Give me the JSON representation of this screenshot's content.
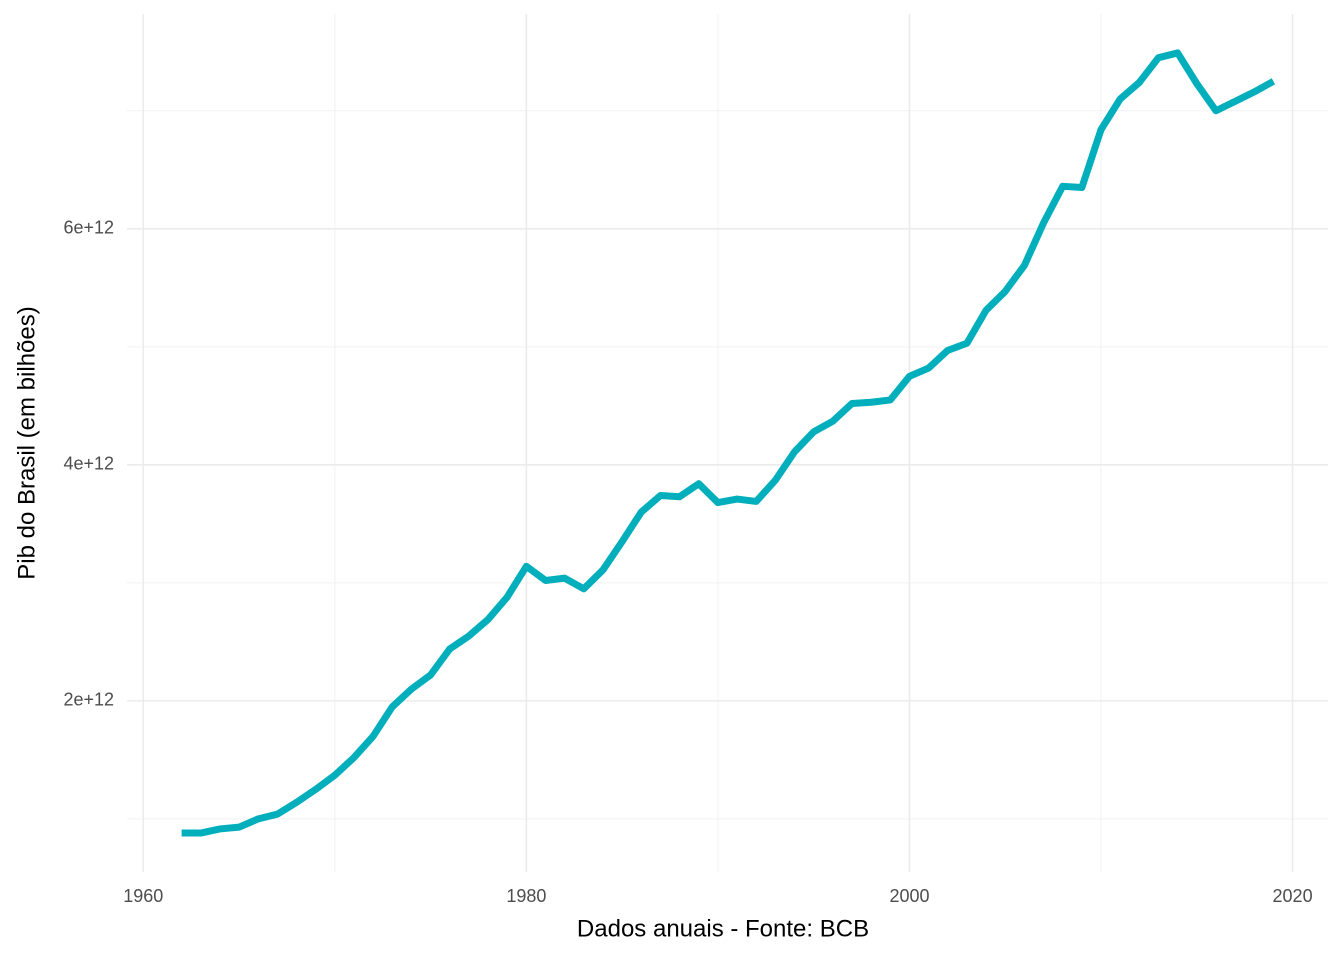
{
  "chart_data": {
    "type": "line",
    "x_label": "Dados anuais - Fonte: BCB",
    "y_label": "Pib do Brasil (em bilhões)",
    "x": [
      1962,
      1963,
      1964,
      1965,
      1966,
      1967,
      1968,
      1969,
      1970,
      1971,
      1972,
      1973,
      1974,
      1975,
      1976,
      1977,
      1978,
      1979,
      1980,
      1981,
      1982,
      1983,
      1984,
      1985,
      1986,
      1987,
      1988,
      1989,
      1990,
      1991,
      1992,
      1993,
      1994,
      1995,
      1996,
      1997,
      1998,
      1999,
      2000,
      2001,
      2002,
      2003,
      2004,
      2005,
      2006,
      2007,
      2008,
      2009,
      2010,
      2011,
      2012,
      2013,
      2014,
      2015,
      2016,
      2017,
      2018,
      2019
    ],
    "series": [
      {
        "color": "#00afbb",
        "values": [
          880000000000.0,
          880000000000.0,
          915000000000.0,
          930000000000.0,
          1000000000000.0,
          1040000000000.0,
          1140000000000.0,
          1250000000000.0,
          1370000000000.0,
          1520000000000.0,
          1700000000000.0,
          1950000000000.0,
          2100000000000.0,
          2220000000000.0,
          2440000000000.0,
          2550000000000.0,
          2690000000000.0,
          2880000000000.0,
          3140000000000.0,
          3020000000000.0,
          3040000000000.0,
          2950000000000.0,
          3110000000000.0,
          3350000000000.0,
          3600000000000.0,
          3740000000000.0,
          3730000000000.0,
          3840000000000.0,
          3680000000000.0,
          3710000000000.0,
          3690000000000.0,
          3870000000000.0,
          4110000000000.0,
          4280000000000.0,
          4370000000000.0,
          4520000000000.0,
          4530000000000.0,
          4550000000000.0,
          4750000000000.0,
          4820000000000.0,
          4970000000000.0,
          5030000000000.0,
          5310000000000.0,
          5470000000000.0,
          5690000000000.0,
          6050000000000.0,
          6360000000000.0,
          6350000000000.0,
          6840000000000.0,
          7100000000000.0,
          7240000000000.0,
          7450000000000.0,
          7490000000000.0,
          7230000000000.0,
          7000000000000.0,
          7080000000000.0,
          7160000000000.0,
          7250000000000.0
        ]
      }
    ],
    "xlim": [
      1959.15,
      2021.85
    ],
    "xticks": [
      1960,
      1980,
      2000,
      2020
    ],
    "x_minor_ticks": [
      1970,
      1990,
      2010
    ],
    "ylim": [
      550000000000.0,
      7820000000000.0
    ],
    "yticks": [
      {
        "value": 2000000000000.0,
        "label": "2e+12"
      },
      {
        "value": 4000000000000.0,
        "label": "4e+12"
      },
      {
        "value": 6000000000000.0,
        "label": "6e+12"
      }
    ],
    "y_minor_ticks": [
      1000000000000.0,
      3000000000000.0,
      5000000000000.0,
      7000000000000.0
    ],
    "grid": true
  }
}
